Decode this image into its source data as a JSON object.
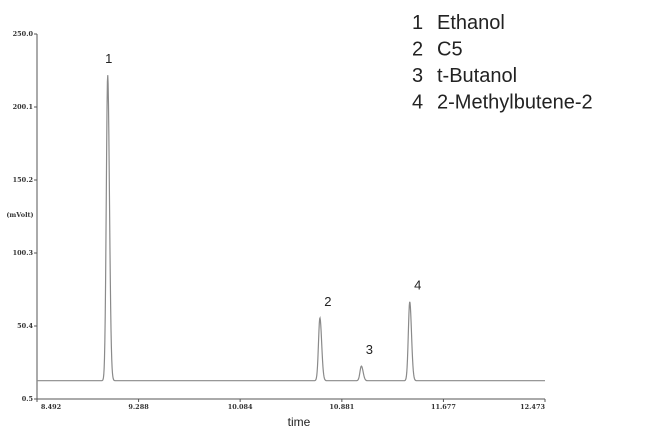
{
  "chart_data": {
    "type": "line",
    "title": "",
    "xlabel": "time",
    "ylabel": "(mVolt)",
    "xlim": [
      8.492,
      12.473
    ],
    "ylim": [
      0.5,
      250.0
    ],
    "x_ticks": [
      "8.492",
      "9.288",
      "10.084",
      "10.881",
      "11.677",
      "12.473"
    ],
    "y_ticks": [
      "0.5",
      "50.4",
      "100.3",
      "150.2",
      "200.1",
      "250.0"
    ],
    "baseline": 13,
    "peaks": [
      {
        "id": "1",
        "x": 9.046,
        "y": 222
      },
      {
        "id": "2",
        "x": 10.709,
        "y": 56
      },
      {
        "id": "3",
        "x": 11.034,
        "y": 23
      },
      {
        "id": "4",
        "x": 11.413,
        "y": 67
      }
    ],
    "legend": [
      {
        "num": "1",
        "name": "Ethanol"
      },
      {
        "num": "2",
        "name": "C5"
      },
      {
        "num": "3",
        "name": "t-Butanol"
      },
      {
        "num": "4",
        "name": "2-Methylbutene-2"
      }
    ]
  }
}
